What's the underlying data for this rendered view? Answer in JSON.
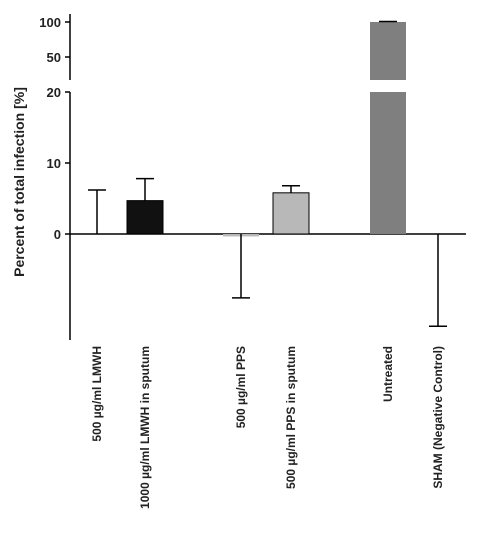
{
  "chart_data": {
    "type": "bar",
    "title": "",
    "ylabel": "Percent of total infection [%]",
    "xlabel": "",
    "y_axis": {
      "broken": true,
      "lower_segment": {
        "range": [
          -13,
          20
        ],
        "ticks": [
          0,
          10,
          20
        ]
      },
      "upper_segment": {
        "range": [
          20,
          105
        ],
        "ticks": [
          50,
          100
        ]
      }
    },
    "grid": false,
    "legend": "none",
    "categories": [
      "500 µg/ml LMWH",
      "1000 µg/ml LMWH in sputum",
      "500 µg/ml PPS",
      "500 µg/ml PPS in sputum",
      "Untreated",
      "SHAM (Negative Control)"
    ],
    "values": [
      0,
      4.7,
      -0.2,
      5.8,
      100,
      0
    ],
    "error_upper": [
      6.2,
      7.8,
      null,
      6.8,
      100.8,
      null
    ],
    "error_lower": [
      null,
      null,
      -9.0,
      null,
      null,
      -13.0
    ],
    "bar_colors": [
      "#ffffff",
      "#111111",
      "#b8b8b8",
      "#b8b8b8",
      "#7f7f7f",
      "#ffffff"
    ]
  }
}
